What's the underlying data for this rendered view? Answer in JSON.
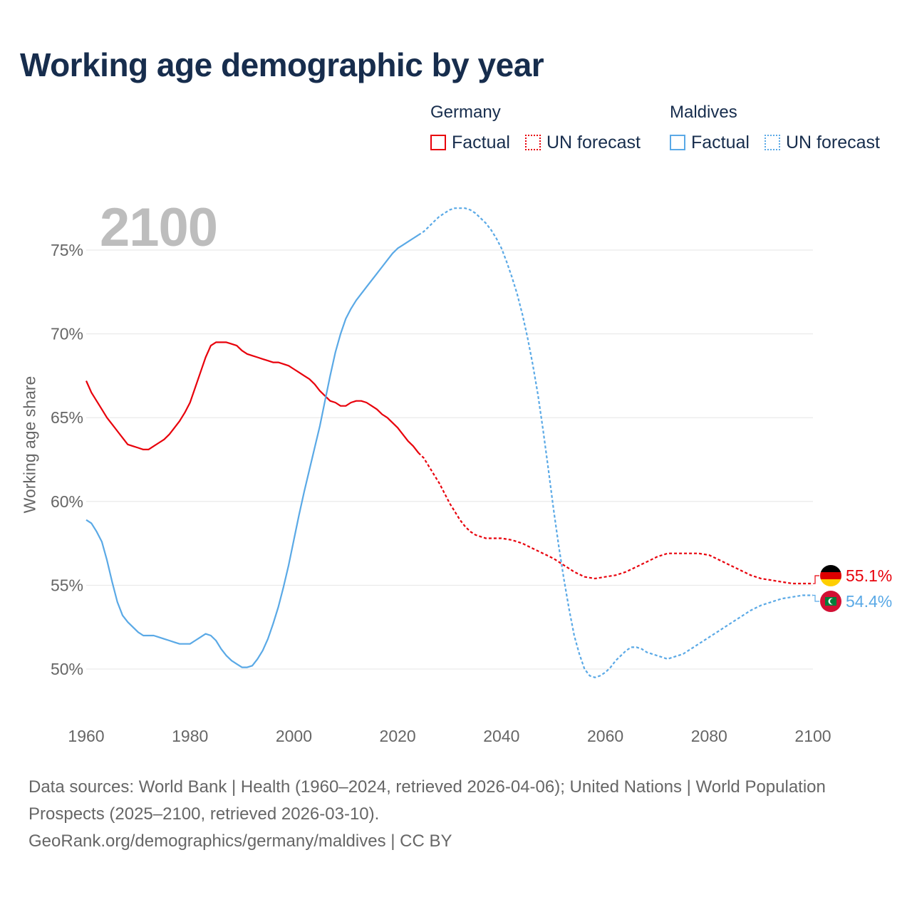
{
  "title": "Working age demographic by year",
  "legend": {
    "groups": [
      {
        "name": "Germany",
        "factual_label": "Factual",
        "forecast_label": "UN forecast",
        "color": "#e8000b"
      },
      {
        "name": "Maldives",
        "factual_label": "Factual",
        "forecast_label": "UN forecast",
        "color": "#5aa9e6"
      }
    ]
  },
  "year_watermark": "2100",
  "end_labels": {
    "germany": "55.1%",
    "maldives": "54.4%"
  },
  "footer": {
    "sources": "Data sources: World Bank | Health (1960–2024, retrieved 2026-04-06); United Nations | World Population Prospects (2025–2100, retrieved 2026-03-10).",
    "link": "GeoRank.org/demographics/germany/maldives | CC BY"
  },
  "chart_data": {
    "type": "line",
    "title": "Working age demographic by year",
    "xlabel": "",
    "ylabel": "Working age share",
    "xlim": [
      1960,
      2100
    ],
    "ylim": [
      47,
      78
    ],
    "x_ticks": [
      1960,
      1980,
      2000,
      2020,
      2040,
      2060,
      2080,
      2100
    ],
    "x_tick_labels": [
      "1960",
      "1980",
      "2000",
      "2020",
      "2040",
      "2060",
      "2080",
      "2100"
    ],
    "y_ticks": [
      50,
      55,
      60,
      65,
      70,
      75
    ],
    "y_tick_labels": [
      "50%",
      "55%",
      "60%",
      "65%",
      "70%",
      "75%"
    ],
    "forecast_start": 2024,
    "series": [
      {
        "name": "Germany",
        "color": "#e8000b",
        "points": [
          [
            1960,
            67.2
          ],
          [
            1961,
            66.5
          ],
          [
            1962,
            66.0
          ],
          [
            1963,
            65.5
          ],
          [
            1964,
            65.0
          ],
          [
            1965,
            64.6
          ],
          [
            1966,
            64.2
          ],
          [
            1967,
            63.8
          ],
          [
            1968,
            63.4
          ],
          [
            1969,
            63.3
          ],
          [
            1970,
            63.2
          ],
          [
            1971,
            63.1
          ],
          [
            1972,
            63.1
          ],
          [
            1973,
            63.3
          ],
          [
            1974,
            63.5
          ],
          [
            1975,
            63.7
          ],
          [
            1976,
            64.0
          ],
          [
            1977,
            64.4
          ],
          [
            1978,
            64.8
          ],
          [
            1979,
            65.3
          ],
          [
            1980,
            65.9
          ],
          [
            1981,
            66.8
          ],
          [
            1982,
            67.7
          ],
          [
            1983,
            68.6
          ],
          [
            1984,
            69.3
          ],
          [
            1985,
            69.5
          ],
          [
            1986,
            69.5
          ],
          [
            1987,
            69.5
          ],
          [
            1988,
            69.4
          ],
          [
            1989,
            69.3
          ],
          [
            1990,
            69.0
          ],
          [
            1991,
            68.8
          ],
          [
            1992,
            68.7
          ],
          [
            1993,
            68.6
          ],
          [
            1994,
            68.5
          ],
          [
            1995,
            68.4
          ],
          [
            1996,
            68.3
          ],
          [
            1997,
            68.3
          ],
          [
            1998,
            68.2
          ],
          [
            1999,
            68.1
          ],
          [
            2000,
            67.9
          ],
          [
            2001,
            67.7
          ],
          [
            2002,
            67.5
          ],
          [
            2003,
            67.3
          ],
          [
            2004,
            67.0
          ],
          [
            2005,
            66.6
          ],
          [
            2006,
            66.3
          ],
          [
            2007,
            66.0
          ],
          [
            2008,
            65.9
          ],
          [
            2009,
            65.7
          ],
          [
            2010,
            65.7
          ],
          [
            2011,
            65.9
          ],
          [
            2012,
            66.0
          ],
          [
            2013,
            66.0
          ],
          [
            2014,
            65.9
          ],
          [
            2015,
            65.7
          ],
          [
            2016,
            65.5
          ],
          [
            2017,
            65.2
          ],
          [
            2018,
            65.0
          ],
          [
            2019,
            64.7
          ],
          [
            2020,
            64.4
          ],
          [
            2021,
            64.0
          ],
          [
            2022,
            63.6
          ],
          [
            2023,
            63.3
          ],
          [
            2024,
            62.9
          ],
          [
            2025,
            62.6
          ],
          [
            2026,
            62.1
          ],
          [
            2027,
            61.6
          ],
          [
            2028,
            61.1
          ],
          [
            2029,
            60.5
          ],
          [
            2030,
            59.9
          ],
          [
            2031,
            59.4
          ],
          [
            2032,
            58.9
          ],
          [
            2033,
            58.5
          ],
          [
            2034,
            58.2
          ],
          [
            2035,
            58.0
          ],
          [
            2036,
            57.9
          ],
          [
            2037,
            57.8
          ],
          [
            2038,
            57.8
          ],
          [
            2039,
            57.8
          ],
          [
            2040,
            57.8
          ],
          [
            2042,
            57.7
          ],
          [
            2044,
            57.5
          ],
          [
            2046,
            57.2
          ],
          [
            2048,
            56.9
          ],
          [
            2050,
            56.6
          ],
          [
            2052,
            56.2
          ],
          [
            2054,
            55.8
          ],
          [
            2056,
            55.5
          ],
          [
            2058,
            55.4
          ],
          [
            2060,
            55.5
          ],
          [
            2062,
            55.6
          ],
          [
            2064,
            55.8
          ],
          [
            2066,
            56.1
          ],
          [
            2068,
            56.4
          ],
          [
            2070,
            56.7
          ],
          [
            2072,
            56.9
          ],
          [
            2074,
            56.9
          ],
          [
            2076,
            56.9
          ],
          [
            2078,
            56.9
          ],
          [
            2080,
            56.8
          ],
          [
            2082,
            56.5
          ],
          [
            2084,
            56.2
          ],
          [
            2086,
            55.9
          ],
          [
            2088,
            55.6
          ],
          [
            2090,
            55.4
          ],
          [
            2092,
            55.3
          ],
          [
            2094,
            55.2
          ],
          [
            2096,
            55.1
          ],
          [
            2098,
            55.1
          ],
          [
            2100,
            55.1
          ]
        ]
      },
      {
        "name": "Maldives",
        "color": "#5aa9e6",
        "points": [
          [
            1960,
            58.9
          ],
          [
            1961,
            58.7
          ],
          [
            1962,
            58.2
          ],
          [
            1963,
            57.6
          ],
          [
            1964,
            56.5
          ],
          [
            1965,
            55.2
          ],
          [
            1966,
            54.0
          ],
          [
            1967,
            53.2
          ],
          [
            1968,
            52.8
          ],
          [
            1969,
            52.5
          ],
          [
            1970,
            52.2
          ],
          [
            1971,
            52.0
          ],
          [
            1972,
            52.0
          ],
          [
            1973,
            52.0
          ],
          [
            1974,
            51.9
          ],
          [
            1975,
            51.8
          ],
          [
            1976,
            51.7
          ],
          [
            1977,
            51.6
          ],
          [
            1978,
            51.5
          ],
          [
            1979,
            51.5
          ],
          [
            1980,
            51.5
          ],
          [
            1981,
            51.7
          ],
          [
            1982,
            51.9
          ],
          [
            1983,
            52.1
          ],
          [
            1984,
            52.0
          ],
          [
            1985,
            51.7
          ],
          [
            1986,
            51.2
          ],
          [
            1987,
            50.8
          ],
          [
            1988,
            50.5
          ],
          [
            1989,
            50.3
          ],
          [
            1990,
            50.1
          ],
          [
            1991,
            50.1
          ],
          [
            1992,
            50.2
          ],
          [
            1993,
            50.6
          ],
          [
            1994,
            51.1
          ],
          [
            1995,
            51.8
          ],
          [
            1996,
            52.7
          ],
          [
            1997,
            53.7
          ],
          [
            1998,
            54.9
          ],
          [
            1999,
            56.2
          ],
          [
            2000,
            57.7
          ],
          [
            2001,
            59.2
          ],
          [
            2002,
            60.6
          ],
          [
            2003,
            61.9
          ],
          [
            2004,
            63.2
          ],
          [
            2005,
            64.5
          ],
          [
            2006,
            66.0
          ],
          [
            2007,
            67.5
          ],
          [
            2008,
            68.9
          ],
          [
            2009,
            70.0
          ],
          [
            2010,
            70.9
          ],
          [
            2011,
            71.5
          ],
          [
            2012,
            72.0
          ],
          [
            2013,
            72.4
          ],
          [
            2014,
            72.8
          ],
          [
            2015,
            73.2
          ],
          [
            2016,
            73.6
          ],
          [
            2017,
            74.0
          ],
          [
            2018,
            74.4
          ],
          [
            2019,
            74.8
          ],
          [
            2020,
            75.1
          ],
          [
            2021,
            75.3
          ],
          [
            2022,
            75.5
          ],
          [
            2023,
            75.7
          ],
          [
            2024,
            75.9
          ],
          [
            2025,
            76.1
          ],
          [
            2026,
            76.4
          ],
          [
            2027,
            76.7
          ],
          [
            2028,
            77.0
          ],
          [
            2029,
            77.2
          ],
          [
            2030,
            77.4
          ],
          [
            2031,
            77.5
          ],
          [
            2032,
            77.5
          ],
          [
            2033,
            77.5
          ],
          [
            2034,
            77.4
          ],
          [
            2035,
            77.2
          ],
          [
            2036,
            76.9
          ],
          [
            2037,
            76.6
          ],
          [
            2038,
            76.2
          ],
          [
            2039,
            75.7
          ],
          [
            2040,
            75.1
          ],
          [
            2041,
            74.3
          ],
          [
            2042,
            73.4
          ],
          [
            2043,
            72.4
          ],
          [
            2044,
            71.2
          ],
          [
            2045,
            69.8
          ],
          [
            2046,
            68.2
          ],
          [
            2047,
            66.4
          ],
          [
            2048,
            64.3
          ],
          [
            2049,
            62.0
          ],
          [
            2050,
            59.6
          ],
          [
            2051,
            57.4
          ],
          [
            2052,
            55.4
          ],
          [
            2053,
            53.6
          ],
          [
            2054,
            52.0
          ],
          [
            2055,
            50.9
          ],
          [
            2056,
            50.0
          ],
          [
            2057,
            49.6
          ],
          [
            2058,
            49.5
          ],
          [
            2059,
            49.6
          ],
          [
            2060,
            49.8
          ],
          [
            2061,
            50.1
          ],
          [
            2062,
            50.5
          ],
          [
            2063,
            50.8
          ],
          [
            2064,
            51.1
          ],
          [
            2065,
            51.3
          ],
          [
            2066,
            51.3
          ],
          [
            2067,
            51.2
          ],
          [
            2068,
            51.0
          ],
          [
            2069,
            50.9
          ],
          [
            2070,
            50.8
          ],
          [
            2071,
            50.7
          ],
          [
            2072,
            50.6
          ],
          [
            2073,
            50.7
          ],
          [
            2074,
            50.8
          ],
          [
            2075,
            50.9
          ],
          [
            2076,
            51.1
          ],
          [
            2077,
            51.3
          ],
          [
            2078,
            51.5
          ],
          [
            2079,
            51.7
          ],
          [
            2080,
            51.9
          ],
          [
            2082,
            52.3
          ],
          [
            2084,
            52.7
          ],
          [
            2086,
            53.1
          ],
          [
            2088,
            53.5
          ],
          [
            2090,
            53.8
          ],
          [
            2092,
            54.0
          ],
          [
            2094,
            54.2
          ],
          [
            2096,
            54.3
          ],
          [
            2098,
            54.4
          ],
          [
            2100,
            54.4
          ]
        ]
      }
    ]
  }
}
